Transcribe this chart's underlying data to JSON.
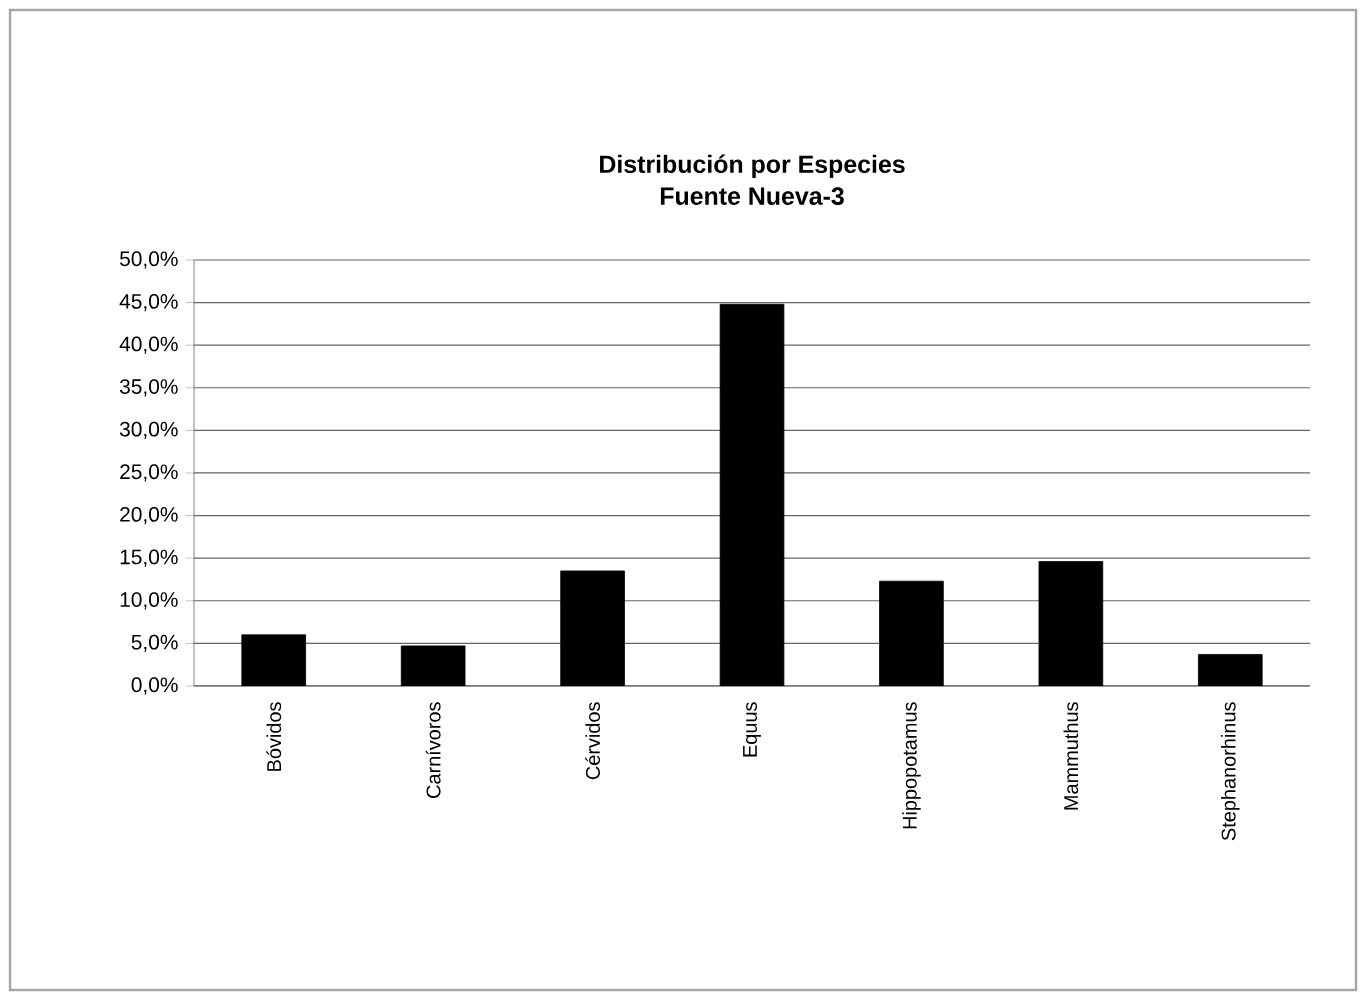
{
  "chart_data": {
    "type": "bar",
    "title": "Distribución por Especies",
    "subtitle": "Fuente Nueva-3",
    "categories": [
      "Bóvidos",
      "Carnívoros",
      "Cérvidos",
      "Equus",
      "Hippopotamus",
      "Mammuthus",
      "Stephanorhinus"
    ],
    "values": [
      6.0,
      4.7,
      13.5,
      44.8,
      12.3,
      14.6,
      3.7
    ],
    "color": "#000000",
    "ylim": [
      0,
      50
    ],
    "yticks": [
      {
        "value": 0,
        "label": "0,0%"
      },
      {
        "value": 5,
        "label": "5,0%"
      },
      {
        "value": 10,
        "label": "10,0%"
      },
      {
        "value": 15,
        "label": "15,0%"
      },
      {
        "value": 20,
        "label": "20,0%"
      },
      {
        "value": 25,
        "label": "25,0%"
      },
      {
        "value": 30,
        "label": "30,0%"
      },
      {
        "value": 35,
        "label": "35,0%"
      },
      {
        "value": 40,
        "label": "40,0%"
      },
      {
        "value": 45,
        "label": "45,0%"
      },
      {
        "value": 50,
        "label": "50,0%"
      }
    ],
    "grid": "y"
  }
}
